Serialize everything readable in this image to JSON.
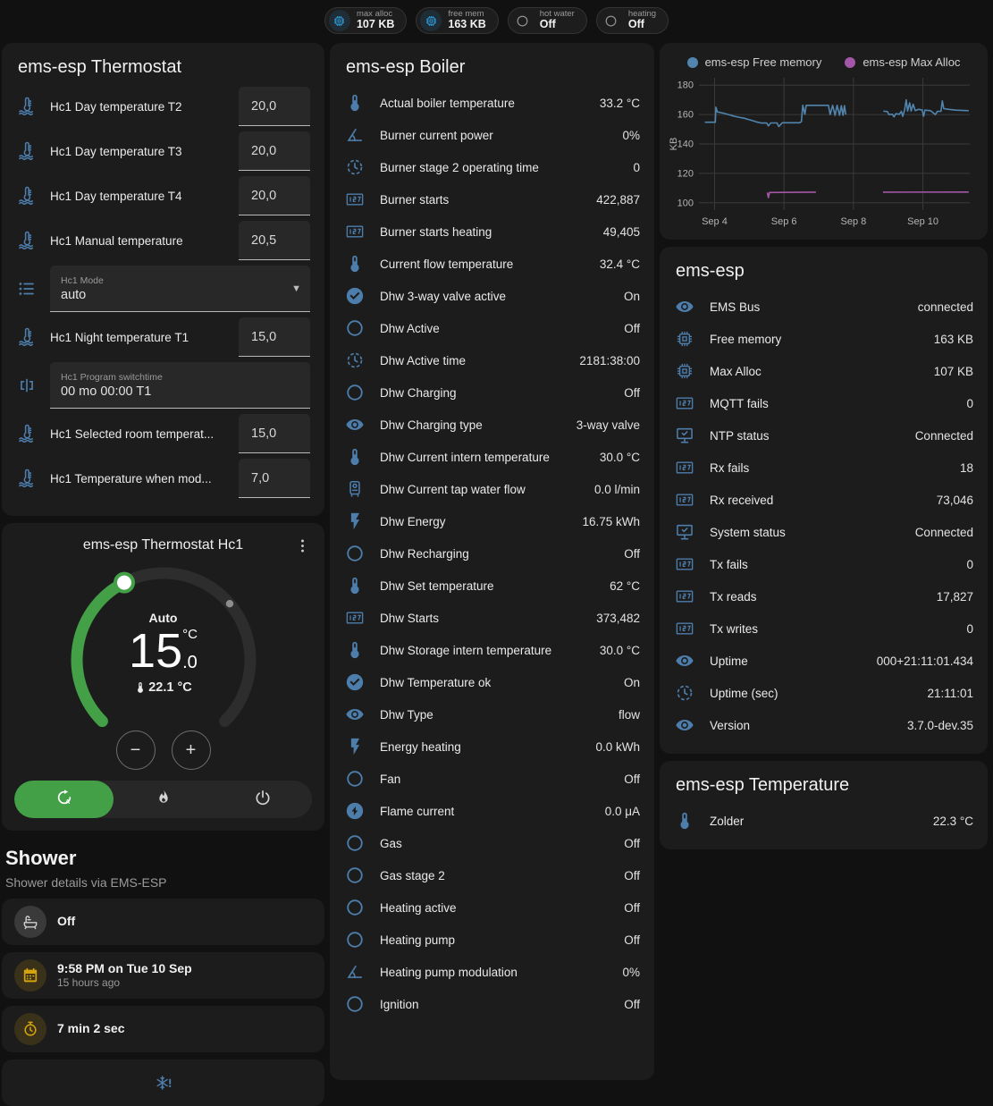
{
  "colors": {
    "icon_blue": "#4d7dab",
    "badge_blue": "#2f9fe0",
    "green": "#43a047",
    "amber": "#d4a30f",
    "chart_blue": "#5185ad",
    "chart_purple": "#a457a8",
    "card_bg": "#1c1c1c",
    "page_bg": "#111111"
  },
  "badges": [
    {
      "icon": "chip",
      "style": "chip-bg",
      "label": "max alloc",
      "value": "107 KB"
    },
    {
      "icon": "chip",
      "style": "chip-bg",
      "label": "free mem",
      "value": "163 KB"
    },
    {
      "icon": "circle",
      "style": "plain",
      "label": "hot water",
      "value": "Off"
    },
    {
      "icon": "circle",
      "style": "plain",
      "label": "heating",
      "value": "Off"
    }
  ],
  "thermostat_card": {
    "title": "ems-esp Thermostat",
    "rows": [
      {
        "type": "number",
        "icon": "coolant-thermometer",
        "name": "Hc1 Day temperature T2",
        "value": "20,0"
      },
      {
        "type": "number",
        "icon": "coolant-thermometer",
        "name": "Hc1 Day temperature T3",
        "value": "20,0"
      },
      {
        "type": "number",
        "icon": "coolant-thermometer",
        "name": "Hc1 Day temperature T4",
        "value": "20,0"
      },
      {
        "type": "number",
        "icon": "coolant-thermometer",
        "name": "Hc1 Manual temperature",
        "value": "20,5"
      },
      {
        "type": "select",
        "icon": "list",
        "label": "Hc1 Mode",
        "value": "auto"
      },
      {
        "type": "number",
        "icon": "coolant-thermometer",
        "name": "Hc1 Night temperature T1",
        "value": "15,0"
      },
      {
        "type": "text",
        "icon": "valve",
        "label": "Hc1 Program switchtime",
        "value": "00 mo 00:00 T1"
      },
      {
        "type": "number",
        "icon": "coolant-thermometer",
        "name": "Hc1 Selected room temperat...",
        "value": "15,0"
      },
      {
        "type": "number",
        "icon": "coolant-thermometer",
        "name": "Hc1 Temperature when mod...",
        "value": "7,0"
      }
    ]
  },
  "hc1": {
    "title": "ems-esp Thermostat Hc1",
    "mode_label": "Auto",
    "target_whole": "15",
    "target_unit": "°C",
    "target_decimal": ".0",
    "current_temperature": "22.1 °C",
    "min": 5,
    "max": 30,
    "target": 15,
    "current": 22.1,
    "minus_label": "−",
    "plus_label": "+",
    "modes": [
      {
        "icon": "auto-mode",
        "active": true
      },
      {
        "icon": "fire",
        "active": false
      },
      {
        "icon": "power",
        "active": false
      }
    ]
  },
  "shower": {
    "heading": "Shower",
    "subtitle": "Shower details via EMS-ESP",
    "items": [
      {
        "icon": "bathtub",
        "style": "gray",
        "title": "Off"
      },
      {
        "icon": "calendar",
        "style": "amber",
        "title": "9:58 PM on Tue 10 Sep",
        "subtitle": "15 hours ago"
      },
      {
        "icon": "timer",
        "style": "amber",
        "title": "7 min 2 sec"
      },
      {
        "icon": "snowflake-alert",
        "style": "blue-plain",
        "centered": true
      }
    ]
  },
  "boiler_card": {
    "title": "ems-esp Boiler",
    "rows": [
      {
        "icon": "thermometer",
        "name": "Actual boiler temperature",
        "value": "33.2 °C"
      },
      {
        "icon": "angle",
        "name": "Burner current power",
        "value": "0%"
      },
      {
        "icon": "clock",
        "name": "Burner stage 2 operating time",
        "value": "0"
      },
      {
        "icon": "counter",
        "name": "Burner starts",
        "value": "422,887"
      },
      {
        "icon": "counter",
        "name": "Burner starts heating",
        "value": "49,405"
      },
      {
        "icon": "thermometer",
        "name": "Current flow temperature",
        "value": "32.4 °C"
      },
      {
        "icon": "check-circle",
        "name": "Dhw 3-way valve active",
        "value": "On"
      },
      {
        "icon": "circle",
        "name": "Dhw Active",
        "value": "Off"
      },
      {
        "icon": "clock",
        "name": "Dhw Active time",
        "value": "2181:38:00"
      },
      {
        "icon": "circle",
        "name": "Dhw Charging",
        "value": "Off"
      },
      {
        "icon": "eye",
        "name": "Dhw Charging type",
        "value": "3-way valve"
      },
      {
        "icon": "thermometer",
        "name": "Dhw Current intern temperature",
        "value": "30.0 °C"
      },
      {
        "icon": "water-boiler",
        "name": "Dhw Current tap water flow",
        "value": "0.0 l/min"
      },
      {
        "icon": "flash",
        "name": "Dhw Energy",
        "value": "16.75 kWh"
      },
      {
        "icon": "circle",
        "name": "Dhw Recharging",
        "value": "Off"
      },
      {
        "icon": "thermometer",
        "name": "Dhw Set temperature",
        "value": "62 °C"
      },
      {
        "icon": "counter",
        "name": "Dhw Starts",
        "value": "373,482"
      },
      {
        "icon": "thermometer",
        "name": "Dhw Storage intern temperature",
        "value": "30.0 °C"
      },
      {
        "icon": "check-circle",
        "name": "Dhw Temperature ok",
        "value": "On"
      },
      {
        "icon": "eye",
        "name": "Dhw Type",
        "value": "flow"
      },
      {
        "icon": "flash",
        "name": "Energy heating",
        "value": "0.0 kWh"
      },
      {
        "icon": "circle",
        "name": "Fan",
        "value": "Off"
      },
      {
        "icon": "flash-circle",
        "name": "Flame current",
        "value": "0.0 μA"
      },
      {
        "icon": "circle",
        "name": "Gas",
        "value": "Off"
      },
      {
        "icon": "circle",
        "name": "Gas stage 2",
        "value": "Off"
      },
      {
        "icon": "circle",
        "name": "Heating active",
        "value": "Off"
      },
      {
        "icon": "circle",
        "name": "Heating pump",
        "value": "Off"
      },
      {
        "icon": "angle",
        "name": "Heating pump modulation",
        "value": "0%"
      },
      {
        "icon": "circle",
        "name": "Ignition",
        "value": "Off"
      }
    ]
  },
  "emsesp_card": {
    "title": "ems-esp",
    "rows": [
      {
        "icon": "eye",
        "name": "EMS Bus",
        "value": "connected"
      },
      {
        "icon": "chip",
        "name": "Free memory",
        "value": "163 KB"
      },
      {
        "icon": "chip",
        "name": "Max Alloc",
        "value": "107 KB"
      },
      {
        "icon": "counter",
        "name": "MQTT fails",
        "value": "0"
      },
      {
        "icon": "monitor-check",
        "name": "NTP status",
        "value": "Connected"
      },
      {
        "icon": "counter",
        "name": "Rx fails",
        "value": "18"
      },
      {
        "icon": "counter",
        "name": "Rx received",
        "value": "73,046"
      },
      {
        "icon": "monitor-check",
        "name": "System status",
        "value": "Connected"
      },
      {
        "icon": "counter",
        "name": "Tx fails",
        "value": "0"
      },
      {
        "icon": "counter",
        "name": "Tx reads",
        "value": "17,827"
      },
      {
        "icon": "counter",
        "name": "Tx writes",
        "value": "0"
      },
      {
        "icon": "eye",
        "name": "Uptime",
        "value": "000+21:11:01.434"
      },
      {
        "icon": "clock",
        "name": "Uptime (sec)",
        "value": "21:11:01"
      },
      {
        "icon": "eye",
        "name": "Version",
        "value": "3.7.0-dev.35"
      }
    ]
  },
  "temperature_card": {
    "title": "ems-esp Temperature",
    "rows": [
      {
        "icon": "thermometer",
        "name": "Zolder",
        "value": "22.3 °C"
      }
    ]
  },
  "chart_data": {
    "type": "line",
    "title": "",
    "xlabel": "",
    "ylabel": "KB",
    "grid": true,
    "legend_position": "top",
    "xlim": [
      3.55,
      11.35
    ],
    "ylim": [
      95,
      185
    ],
    "yticks": [
      100,
      120,
      140,
      160,
      180
    ],
    "xticks": [
      {
        "v": 4,
        "label": "Sep 4"
      },
      {
        "v": 6,
        "label": "Sep 6"
      },
      {
        "v": 8,
        "label": "Sep 8"
      },
      {
        "v": 10,
        "label": "Sep 10"
      }
    ],
    "series": [
      {
        "name": "ems-esp Free memory",
        "color": "#5185ad",
        "segments": [
          [
            [
              3.72,
              154.8
            ],
            [
              4.02,
              154.8
            ],
            [
              4.04,
              165
            ],
            [
              4.08,
              161.8
            ],
            [
              4.25,
              161
            ],
            [
              4.4,
              160
            ],
            [
              4.55,
              159
            ],
            [
              4.7,
              158.2
            ],
            [
              4.85,
              157.5
            ],
            [
              5.0,
              156.5
            ],
            [
              5.1,
              155.8
            ],
            [
              5.2,
              155
            ],
            [
              5.35,
              154.2
            ],
            [
              5.5,
              154.3
            ],
            [
              5.55,
              152.3
            ],
            [
              5.62,
              154.3
            ],
            [
              5.8,
              154.3
            ],
            [
              5.85,
              151.8
            ],
            [
              5.95,
              154.4
            ],
            [
              6.45,
              154.4
            ],
            [
              6.5,
              155.2
            ],
            [
              6.54,
              166.3
            ],
            [
              6.6,
              160.2
            ],
            [
              6.64,
              166.3
            ],
            [
              7.28,
              166.3
            ],
            [
              7.33,
              160
            ],
            [
              7.4,
              166.3
            ],
            [
              7.47,
              159.5
            ],
            [
              7.53,
              166.3
            ],
            [
              7.6,
              159.5
            ],
            [
              7.65,
              166
            ],
            [
              7.7,
              159.5
            ],
            [
              7.74,
              166
            ],
            [
              7.78,
              160
            ]
          ],
          [
            [
              8.86,
              162.3
            ],
            [
              8.98,
              162
            ],
            [
              9.02,
              160
            ],
            [
              9.12,
              160.2
            ],
            [
              9.17,
              158.4
            ],
            [
              9.22,
              160.6
            ],
            [
              9.32,
              160.2
            ],
            [
              9.38,
              162.2
            ],
            [
              9.42,
              158.8
            ],
            [
              9.47,
              162.8
            ],
            [
              9.52,
              170
            ],
            [
              9.56,
              162.4
            ],
            [
              9.62,
              168
            ],
            [
              9.66,
              162.4
            ],
            [
              9.72,
              167
            ],
            [
              9.78,
              162.6
            ],
            [
              9.88,
              163.6
            ],
            [
              9.98,
              163
            ],
            [
              10.02,
              158.8
            ],
            [
              10.06,
              163
            ],
            [
              10.22,
              162.6
            ],
            [
              10.36,
              160
            ],
            [
              10.42,
              162.2
            ],
            [
              10.52,
              162.2
            ],
            [
              10.56,
              169.3
            ],
            [
              10.6,
              164
            ],
            [
              10.72,
              163.6
            ],
            [
              10.95,
              163
            ],
            [
              11.32,
              162.6
            ]
          ]
        ]
      },
      {
        "name": "ems-esp Max Alloc",
        "color": "#a457a8",
        "segments": [
          [
            [
              5.52,
              107
            ],
            [
              5.55,
              103.5
            ],
            [
              5.58,
              107
            ],
            [
              6.92,
              107.2
            ]
          ],
          [
            [
              8.85,
              107.2
            ],
            [
              11.32,
              107.3
            ]
          ]
        ]
      }
    ]
  }
}
